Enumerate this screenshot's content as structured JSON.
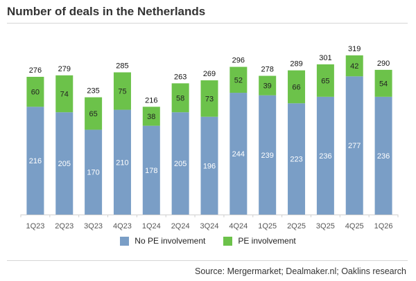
{
  "title": "Number of deals in the Netherlands",
  "source": "Source: Mergermarket; Dealmaker.nl; Oaklins research",
  "colors": {
    "no_pe": "#7a9ec6",
    "pe": "#6cc24a",
    "axis": "#cfcfcf"
  },
  "legend": {
    "no_pe": "No PE involvement",
    "pe": "PE involvement"
  },
  "chart_data": {
    "type": "bar",
    "stacked": true,
    "title": "Number of deals in the Netherlands",
    "categories": [
      "1Q23",
      "2Q23",
      "3Q23",
      "4Q23",
      "1Q24",
      "2Q24",
      "3Q24",
      "4Q24",
      "1Q25",
      "2Q25",
      "3Q25",
      "4Q25",
      "1Q26"
    ],
    "series": [
      {
        "name": "No PE involvement",
        "values": [
          216,
          205,
          170,
          210,
          178,
          205,
          196,
          244,
          239,
          223,
          236,
          277,
          236
        ]
      },
      {
        "name": "PE involvement",
        "values": [
          60,
          74,
          65,
          75,
          38,
          58,
          73,
          52,
          39,
          66,
          65,
          42,
          54
        ]
      }
    ],
    "totals": [
      276,
      279,
      235,
      285,
      216,
      263,
      269,
      296,
      278,
      289,
      301,
      319,
      290
    ],
    "ylim": [
      0,
      319
    ],
    "grid": false,
    "legend_position": "bottom"
  }
}
